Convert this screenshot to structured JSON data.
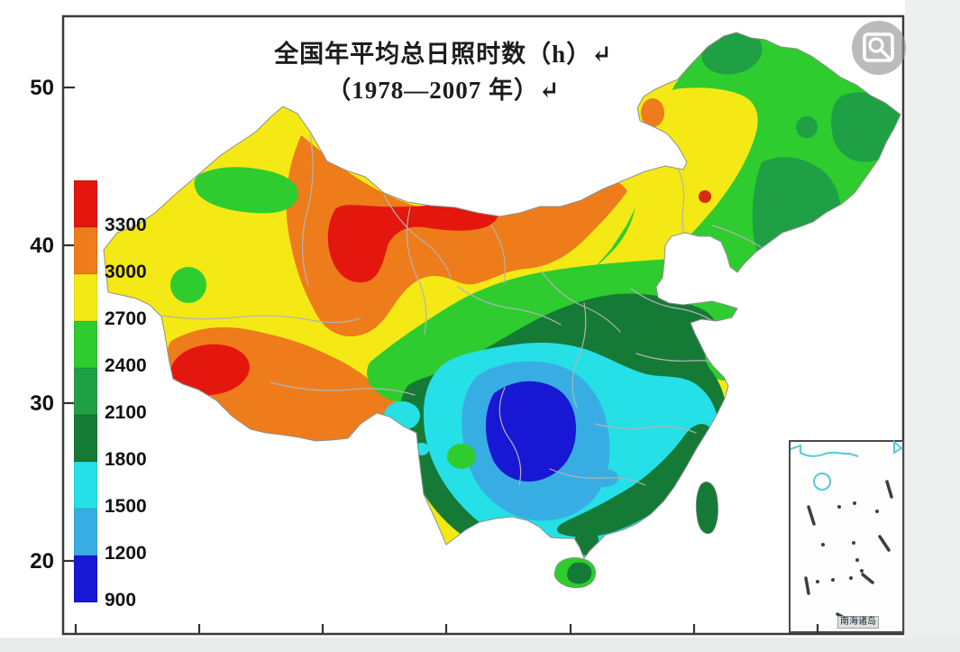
{
  "title": {
    "line1": "全国年平均总日照时数（h）↵",
    "line2": "（1978—2007 年）↵"
  },
  "axes": {
    "y_tick_labels": [
      "50",
      "40",
      "30",
      "20"
    ],
    "x_tick_count": 7
  },
  "legend": {
    "items": [
      {
        "label": "3300",
        "color": "#e3170d"
      },
      {
        "label": "3000",
        "color": "#ee7c1b"
      },
      {
        "label": "2700",
        "color": "#f4e914"
      },
      {
        "label": "2400",
        "color": "#2ecc2e"
      },
      {
        "label": "2100",
        "color": "#1fa044"
      },
      {
        "label": "1800",
        "color": "#157a35"
      },
      {
        "label": "1500",
        "color": "#25e0e6"
      },
      {
        "label": "1200",
        "color": "#38ade4"
      },
      {
        "label": "900",
        "color": "#1717d4"
      }
    ]
  },
  "map": {
    "inset_label": "南海诸岛"
  },
  "icons": {
    "top_right": "image-search-icon"
  }
}
